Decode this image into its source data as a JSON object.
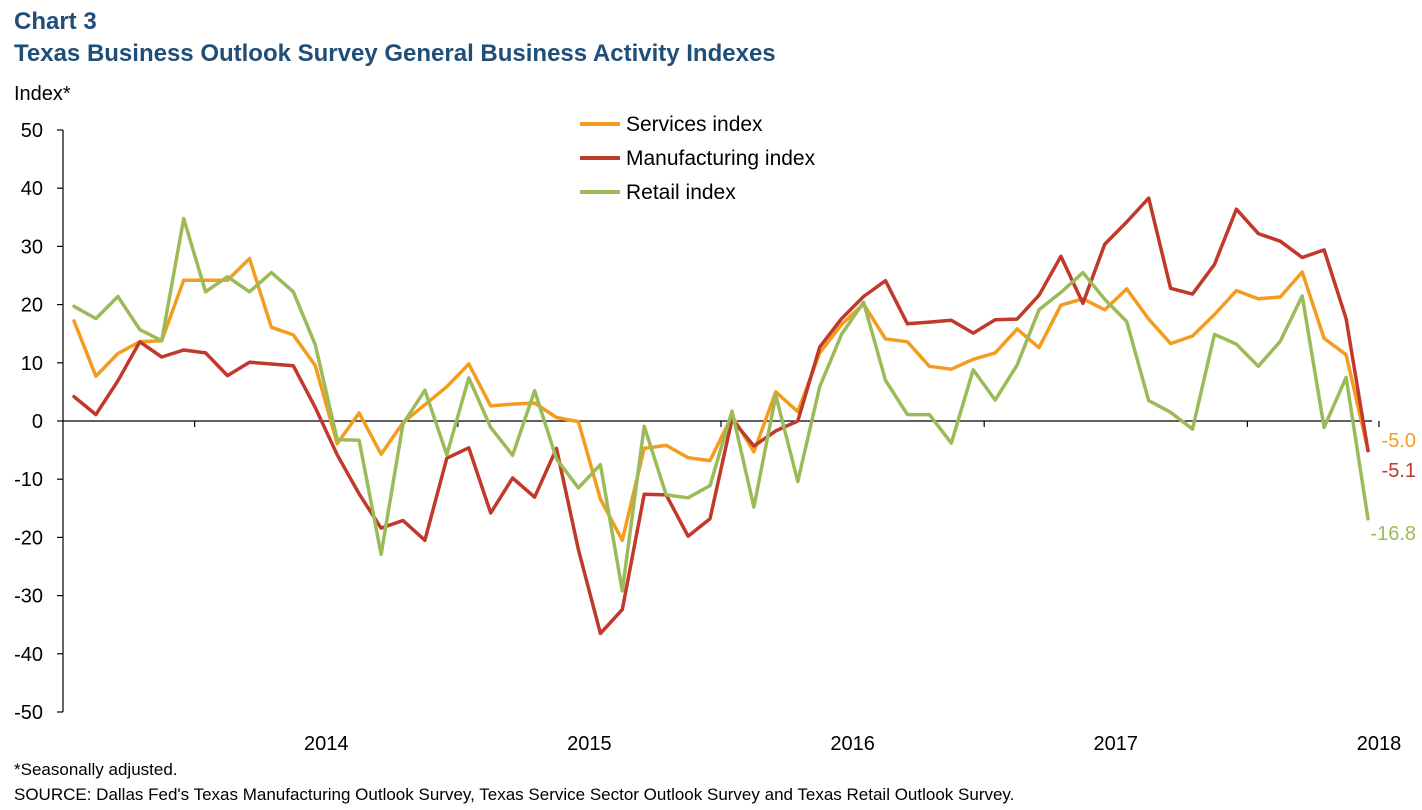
{
  "header": {
    "chart_label": "Chart 3",
    "title": "Texas Business Outlook Survey General Business Activity Indexes"
  },
  "footer": {
    "footnote": "*Seasonally adjusted.",
    "source": "SOURCE: Dallas Fed's Texas Manufacturing Outlook Survey, Texas Service Sector Outlook Survey and Texas Retail Outlook Survey."
  },
  "chart_data": {
    "type": "line",
    "ylabel": "Index*",
    "ylim": [
      -50,
      50
    ],
    "yticks": [
      50,
      40,
      30,
      20,
      10,
      0,
      -10,
      -20,
      -30,
      -40,
      -50
    ],
    "xlabels": [
      "2014",
      "2015",
      "2016",
      "2017",
      "2018"
    ],
    "x_start": "2013-07",
    "x_end": "2018-06",
    "grid": false,
    "legend_position": "top-center",
    "x": [
      "2013-07",
      "2013-08",
      "2013-09",
      "2013-10",
      "2013-11",
      "2013-12",
      "2014-01",
      "2014-02",
      "2014-03",
      "2014-04",
      "2014-05",
      "2014-06",
      "2014-07",
      "2014-08",
      "2014-09",
      "2014-10",
      "2014-11",
      "2014-12",
      "2015-01",
      "2015-02",
      "2015-03",
      "2015-04",
      "2015-05",
      "2015-06",
      "2015-07",
      "2015-08",
      "2015-09",
      "2015-10",
      "2015-11",
      "2015-12",
      "2016-01",
      "2016-02",
      "2016-03",
      "2016-04",
      "2016-05",
      "2016-06",
      "2016-07",
      "2016-08",
      "2016-09",
      "2016-10",
      "2016-11",
      "2016-12",
      "2017-01",
      "2017-02",
      "2017-03",
      "2017-04",
      "2017-05",
      "2017-06",
      "2017-07",
      "2017-08",
      "2017-09",
      "2017-10",
      "2017-11",
      "2017-12",
      "2018-01",
      "2018-02",
      "2018-03",
      "2018-04",
      "2018-05",
      "2018-06"
    ],
    "series": [
      {
        "name": "Services index",
        "color": "#f39c1f",
        "end_label": "-5.0",
        "values": [
          17.2,
          7.7,
          11.6,
          13.6,
          13.8,
          24.2,
          24.2,
          24.2,
          27.9,
          16.1,
          14.8,
          9.5,
          -3.9,
          1.4,
          -5.7,
          -0.3,
          2.8,
          5.9,
          9.8,
          2.6,
          2.9,
          3.1,
          0.6,
          -0.1,
          -13.4,
          -20.5,
          -4.7,
          -4.2,
          -6.3,
          -6.8,
          0.9,
          -5.3,
          5.0,
          1.6,
          11.7,
          16.6,
          20.1,
          14.1,
          13.6,
          9.4,
          8.9,
          10.6,
          11.7,
          15.8,
          12.6,
          19.9,
          21.0,
          19.1,
          22.7,
          17.5,
          13.3,
          14.6,
          18.3,
          22.4,
          21.0,
          21.3,
          25.6,
          14.2,
          11.4,
          -5.0
        ]
      },
      {
        "name": "Manufacturing index",
        "color": "#c0392b",
        "end_label": "-5.1",
        "values": [
          4.2,
          1.1,
          6.9,
          13.6,
          11.0,
          12.2,
          11.7,
          7.8,
          10.1,
          9.8,
          9.5,
          2.3,
          -5.8,
          -12.5,
          -18.4,
          -17.1,
          -20.5,
          -6.4,
          -4.6,
          -15.8,
          -9.8,
          -13.1,
          -4.7,
          -22.1,
          -36.5,
          -32.4,
          -12.6,
          -12.7,
          -19.8,
          -16.8,
          0.3,
          -4.3,
          -1.7,
          0.0,
          12.7,
          17.6,
          21.4,
          24.1,
          16.7,
          17.0,
          17.3,
          15.1,
          17.4,
          17.5,
          21.6,
          28.3,
          20.2,
          30.4,
          34.2,
          38.3,
          22.8,
          21.8,
          26.9,
          36.4,
          32.2,
          30.9,
          28.1,
          29.4,
          17.6,
          -5.1
        ]
      },
      {
        "name": "Retail index",
        "color": "#9bbb59",
        "end_label": "-16.8",
        "values": [
          19.7,
          17.6,
          21.4,
          15.7,
          13.8,
          34.8,
          22.2,
          24.8,
          22.2,
          25.5,
          22.2,
          13.1,
          -3.2,
          -3.3,
          -22.9,
          -0.5,
          5.3,
          -5.8,
          7.4,
          -1.1,
          -5.9,
          5.2,
          -6.5,
          -11.5,
          -7.5,
          -29.2,
          -0.9,
          -12.7,
          -13.2,
          -11.1,
          1.7,
          -14.8,
          4.4,
          -10.4,
          5.9,
          14.9,
          20.4,
          7.0,
          1.1,
          1.1,
          -3.8,
          8.8,
          3.6,
          9.6,
          19.1,
          22.1,
          25.5,
          20.9,
          17.1,
          3.5,
          1.5,
          -1.4,
          14.9,
          13.2,
          9.4,
          13.7,
          21.5,
          -1.1,
          7.5,
          -16.8
        ]
      }
    ]
  }
}
